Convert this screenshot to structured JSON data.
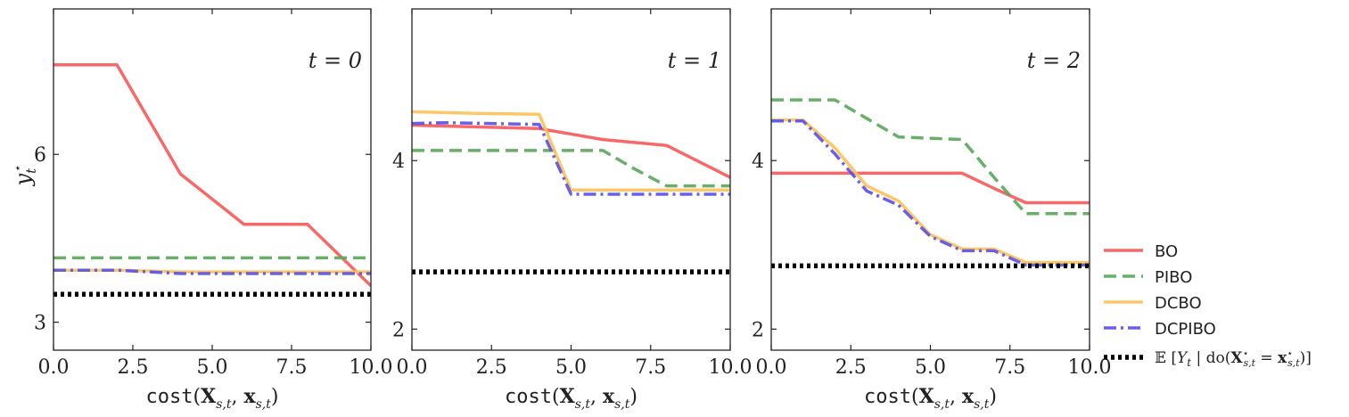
{
  "chart_data": [
    {
      "type": "line",
      "panel_label": "t = 0",
      "xlabel": "cost(X_{s,t}, x_{s,t})",
      "ylabel": "y_t*",
      "xlim": [
        0,
        10
      ],
      "ylim": [
        2.5,
        8.6
      ],
      "xticks": [
        0,
        2.5,
        5,
        7.5,
        10
      ],
      "xtick_labels": [
        "0.0",
        "2.5",
        "5.0",
        "7.5",
        "10.0"
      ],
      "yticks": [
        3,
        6
      ],
      "ytick_labels": [
        "3",
        "6"
      ],
      "series": [
        {
          "name": "BO",
          "x": [
            0,
            2,
            4,
            6,
            8,
            10
          ],
          "y": [
            7.6,
            7.6,
            5.65,
            4.75,
            4.75,
            3.65
          ]
        },
        {
          "name": "PIBO",
          "x": [
            0,
            10
          ],
          "y": [
            4.15,
            4.15
          ]
        },
        {
          "name": "DCBO",
          "x": [
            0,
            2,
            4,
            10
          ],
          "y": [
            3.93,
            3.93,
            3.9,
            3.9
          ]
        },
        {
          "name": "DCPIBO",
          "x": [
            0,
            2,
            4,
            10
          ],
          "y": [
            3.93,
            3.93,
            3.87,
            3.87
          ]
        },
        {
          "name": "E[Y_t | do(X*_{s,t} = x*_{s,t})]",
          "x": [
            0,
            10
          ],
          "y": [
            3.5,
            3.5
          ]
        }
      ]
    },
    {
      "type": "line",
      "panel_label": "t = 1",
      "xlabel": "cost(X_{s,t}, x_{s,t})",
      "xlim": [
        0,
        10
      ],
      "ylim": [
        1.75,
        5.8
      ],
      "xticks": [
        0,
        2.5,
        5,
        7.5,
        10
      ],
      "xtick_labels": [
        "0.0",
        "2.5",
        "5.0",
        "7.5",
        "10.0"
      ],
      "yticks": [
        2,
        4
      ],
      "ytick_labels": [
        "2",
        "4"
      ],
      "series": [
        {
          "name": "BO",
          "x": [
            0,
            4,
            6,
            8,
            10
          ],
          "y": [
            4.42,
            4.38,
            4.25,
            4.18,
            3.8
          ]
        },
        {
          "name": "PIBO",
          "x": [
            0,
            6,
            7,
            8,
            10
          ],
          "y": [
            4.12,
            4.12,
            3.9,
            3.7,
            3.7
          ]
        },
        {
          "name": "DCBO",
          "x": [
            0,
            2,
            4,
            5,
            10
          ],
          "y": [
            4.58,
            4.56,
            4.55,
            3.65,
            3.65
          ]
        },
        {
          "name": "DCPIBO",
          "x": [
            0,
            1,
            4,
            5,
            10
          ],
          "y": [
            4.44,
            4.45,
            4.43,
            3.6,
            3.6
          ]
        },
        {
          "name": "E[Y_t | do(X*_{s,t} = x*_{s,t})]",
          "x": [
            0,
            10
          ],
          "y": [
            2.68,
            2.68
          ]
        }
      ]
    },
    {
      "type": "line",
      "panel_label": "t = 2",
      "xlabel": "cost(X_{s,t}, x_{s,t})",
      "xlim": [
        0,
        10
      ],
      "ylim": [
        1.75,
        5.8
      ],
      "xticks": [
        0,
        2.5,
        5,
        7.5,
        10
      ],
      "xtick_labels": [
        "0.0",
        "2.5",
        "5.0",
        "7.5",
        "10.0"
      ],
      "yticks": [
        2,
        4
      ],
      "ytick_labels": [
        "2",
        "4"
      ],
      "series": [
        {
          "name": "BO",
          "x": [
            0,
            6,
            7,
            8,
            10
          ],
          "y": [
            3.85,
            3.85,
            3.67,
            3.5,
            3.5
          ]
        },
        {
          "name": "PIBO",
          "x": [
            0,
            2,
            4,
            6,
            7,
            8,
            10
          ],
          "y": [
            4.72,
            4.72,
            4.28,
            4.25,
            3.8,
            3.37,
            3.37
          ]
        },
        {
          "name": "DCBO",
          "x": [
            0,
            1,
            2,
            3,
            4,
            5,
            6,
            7,
            8,
            10
          ],
          "y": [
            4.48,
            4.48,
            4.15,
            3.7,
            3.52,
            3.12,
            2.95,
            2.95,
            2.79,
            2.79
          ]
        },
        {
          "name": "DCPIBO",
          "x": [
            0,
            1,
            2,
            3,
            4,
            5,
            6,
            7,
            8,
            10
          ],
          "y": [
            4.47,
            4.47,
            4.08,
            3.64,
            3.47,
            3.1,
            2.93,
            2.93,
            2.76,
            2.76
          ]
        },
        {
          "name": "E[Y_t | do(X*_{s,t} = x*_{s,t})]",
          "x": [
            0,
            10
          ],
          "y": [
            2.75,
            2.75
          ]
        }
      ]
    }
  ],
  "legend": {
    "placement": "right",
    "entries": [
      {
        "label": "BO",
        "color": "#f75b5b",
        "style": "solid"
      },
      {
        "label": "PIBO",
        "color": "#5ba85b",
        "style": "dashed"
      },
      {
        "label": "DCBO",
        "color": "#fcc35a",
        "style": "solid"
      },
      {
        "label": "DCPIBO",
        "color": "#5b52ea",
        "style": "dashdot"
      },
      {
        "label": "𝔼 [Y_t | do(X*_{s,t} = x*_{s,t})]",
        "color": "#000000",
        "style": "dotted"
      }
    ]
  },
  "colors": {
    "BO": "#f75b5b",
    "PIBO": "#5ba85b",
    "DCBO": "#fcc35a",
    "DCPIBO": "#5b52ea",
    "expectation": "#000000"
  }
}
